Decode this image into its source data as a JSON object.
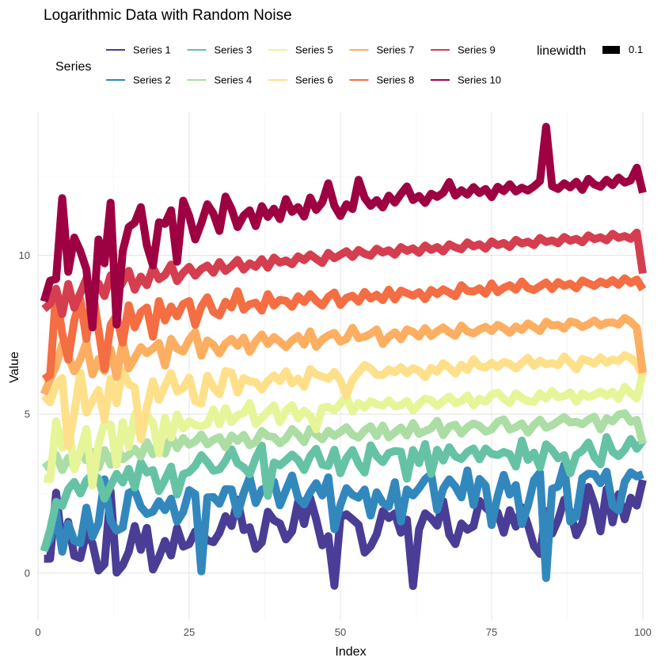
{
  "chart_data": {
    "type": "line",
    "title": "Logarithmic Data with Random Noise",
    "xlabel": "Index",
    "ylabel": "Value",
    "xlim": [
      0,
      100
    ],
    "ylim": [
      -1.5,
      14.5
    ],
    "xticks": [
      0,
      25,
      50,
      75,
      100
    ],
    "yticks": [
      0,
      5,
      10
    ],
    "grid": true,
    "legend": {
      "title": "Series",
      "placement": "top",
      "size_title": "linewidth",
      "size_label": "0.1"
    },
    "series": [
      {
        "name": "Series 1",
        "color": "#4a3d96",
        "values": [
          0.45,
          0.45,
          2.53,
          0.83,
          1.61,
          0.54,
          0.47,
          1.27,
          0.94,
          0.08,
          0.28,
          2.58,
          0.01,
          0.24,
          0.67,
          1.48,
          0.73,
          1.42,
          0.11,
          0.5,
          1.01,
          0.55,
          1.42,
          0.83,
          0.91,
          1.31,
          1.25,
          1.03,
          0.97,
          1.27,
          1.79,
          1.48,
          2.31,
          1.35,
          1.44,
          0.76,
          0.96,
          1.93,
          1.66,
          1.56,
          1.06,
          1.31,
          2.24,
          1.54,
          2.37,
          1.69,
          0.87,
          1.16,
          -0.4,
          1.75,
          1.85,
          1.69,
          1.52,
          0.64,
          0.84,
          1.22,
          1.95,
          1.73,
          1.88,
          1.27,
          1.68,
          -0.41,
          1.37,
          1.88,
          1.72,
          1.49,
          2.26,
          1.21,
          0.91,
          1.56,
          1.36,
          1.47,
          2.27,
          2.06,
          1.88,
          1.91,
          1.27,
          1.98,
          1.46,
          2.07,
          1.52,
          0.85,
          0.6,
          1.95,
          1.24,
          1.67,
          2.31,
          1.93,
          1.19,
          1.58,
          2.71,
          2.16,
          1.31,
          2.64,
          1.59,
          2.48,
          1.69,
          2.37,
          2.12,
          2.93
        ]
      },
      {
        "name": "Series 2",
        "color": "#3288bd",
        "values": [
          0.74,
          1.07,
          1.93,
          0.67,
          1.55,
          1.02,
          0.94,
          2.06,
          1.14,
          1.56,
          2.95,
          1.65,
          1.33,
          1.43,
          2.52,
          2.61,
          2.09,
          1.86,
          1.93,
          2.26,
          1.98,
          2.34,
          1.62,
          1.92,
          2.61,
          2.48,
          0.05,
          2.38,
          2.39,
          2.18,
          2.64,
          2.63,
          1.85,
          2.52,
          3.01,
          2.2,
          2.63,
          2.71,
          2.88,
          2.13,
          2.61,
          3.07,
          2.36,
          2.16,
          2.54,
          2.83,
          2.44,
          3.01,
          1.38,
          2.14,
          2.67,
          2.46,
          2.37,
          2.63,
          1.81,
          2.54,
          2.21,
          2.09,
          2.86,
          1.62,
          2.63,
          2.44,
          2.67,
          2.95,
          3.12,
          1.99,
          2.66,
          2.95,
          2.72,
          2.38,
          3.23,
          2.14,
          2.96,
          2.75,
          1.51,
          2.42,
          3.09,
          2.47,
          2.77,
          1.54,
          2.11,
          2.92,
          3.16,
          -0.16,
          2.65,
          2.72,
          3.41,
          1.62,
          1.78,
          2.99,
          3.13,
          3.11,
          2.83,
          3.19,
          2.12,
          1.97,
          2.87,
          3.17,
          3.04,
          3.11
        ]
      },
      {
        "name": "Series 3",
        "color": "#66c2a5",
        "values": [
          0.69,
          1.36,
          2.24,
          2.11,
          2.64,
          2.87,
          2.5,
          2.91,
          3.12,
          2.97,
          2.34,
          2.75,
          3.12,
          2.85,
          3.28,
          2.69,
          3.48,
          3.16,
          3.24,
          2.58,
          2.94,
          3.35,
          2.47,
          3.11,
          3.18,
          3.38,
          3.71,
          3.49,
          3.22,
          3.26,
          3.53,
          3.89,
          3.45,
          3.33,
          3.11,
          3.62,
          4.01,
          2.43,
          3.48,
          3.39,
          3.55,
          3.73,
          3.56,
          3.24,
          3.68,
          3.91,
          3.41,
          3.37,
          3.88,
          3.14,
          3.62,
          3.87,
          3.44,
          3.16,
          4.02,
          3.68,
          3.49,
          3.78,
          3.84,
          3.82,
          2.97,
          3.87,
          3.46,
          4.06,
          3.12,
          3.88,
          3.54,
          3.96,
          3.67,
          3.59,
          3.81,
          3.92,
          3.58,
          3.92,
          3.75,
          3.71,
          3.81,
          3.74,
          3.35,
          4.17,
          3.56,
          3.79,
          3.33,
          4.05,
          3.88,
          3.61,
          3.71,
          3.14,
          3.72,
          3.85,
          4.11,
          3.65,
          3.42,
          4.28,
          3.82,
          3.68,
          3.88,
          4.22,
          3.91,
          4.16
        ]
      },
      {
        "name": "Series 4",
        "color": "#abdda4",
        "values": [
          3.31,
          3.45,
          3.72,
          3.24,
          3.63,
          3.34,
          3.78,
          3.55,
          3.81,
          3.32,
          3.87,
          3.41,
          4.02,
          3.58,
          3.72,
          3.91,
          3.67,
          4.12,
          3.74,
          4.08,
          3.76,
          4.32,
          3.93,
          4.25,
          4.04,
          4.14,
          4.36,
          4.05,
          4.19,
          4.28,
          3.96,
          4.33,
          4.16,
          4.35,
          4.02,
          4.12,
          4.47,
          4.31,
          4.28,
          4.08,
          4.23,
          4.53,
          4.36,
          4.12,
          4.54,
          4.36,
          4.21,
          4.48,
          4.32,
          4.44,
          4.59,
          4.35,
          4.26,
          4.49,
          4.62,
          4.31,
          4.64,
          4.27,
          4.43,
          4.58,
          4.33,
          4.72,
          4.38,
          4.47,
          4.55,
          4.79,
          4.34,
          4.61,
          4.67,
          4.39,
          4.59,
          4.71,
          4.63,
          4.45,
          4.52,
          4.76,
          4.84,
          4.51,
          4.59,
          4.71,
          4.42,
          4.66,
          4.83,
          4.57,
          4.65,
          4.78,
          4.91,
          4.74,
          4.76,
          4.68,
          4.83,
          4.92,
          4.52,
          4.87,
          4.77,
          4.99,
          5.03,
          4.76,
          4.82,
          4.07
        ]
      },
      {
        "name": "Series 5",
        "color": "#e6f598",
        "values": [
          2.98,
          2.95,
          4.78,
          3.94,
          4.74,
          3.26,
          3.84,
          4.53,
          2.75,
          4.05,
          4.71,
          4.67,
          3.41,
          4.75,
          3.97,
          4.99,
          4.26,
          4.98,
          4.71,
          3.76,
          4.89,
          4.26,
          4.99,
          4.55,
          4.77,
          4.66,
          4.62,
          4.69,
          5.15,
          4.68,
          5.19,
          4.75,
          4.97,
          5.03,
          5.35,
          4.69,
          4.88,
          5.09,
          5.28,
          4.75,
          5.11,
          5.29,
          4.87,
          5.11,
          4.96,
          4.52,
          5.21,
          5.23,
          5.12,
          5.33,
          5.55,
          5.08,
          5.35,
          5.21,
          5.41,
          5.31,
          5.27,
          5.44,
          5.25,
          5.28,
          5.42,
          5.11,
          5.32,
          5.49,
          5.44,
          5.26,
          5.41,
          5.56,
          5.35,
          5.41,
          5.59,
          5.28,
          5.49,
          5.39,
          5.62,
          5.68,
          5.49,
          5.35,
          5.66,
          5.51,
          5.41,
          5.39,
          5.66,
          5.49,
          5.73,
          5.53,
          5.57,
          5.69,
          5.39,
          5.66,
          5.54,
          5.61,
          5.71,
          5.58,
          5.71,
          5.48,
          5.86,
          5.66,
          5.49,
          6.29
        ]
      },
      {
        "name": "Series 6",
        "color": "#fee08b",
        "values": [
          5.58,
          5.37,
          5.93,
          6.14,
          3.99,
          5.02,
          6.31,
          5.05,
          5.42,
          5.76,
          4.83,
          6.11,
          5.34,
          6.36,
          5.95,
          5.84,
          4.21,
          5.22,
          6.04,
          5.45,
          5.89,
          6.29,
          5.71,
          5.82,
          6.15,
          5.41,
          5.33,
          6.21,
          5.84,
          5.63,
          6.36,
          6.31,
          5.68,
          6.14,
          6.03,
          6.01,
          5.78,
          6.05,
          6.22,
          6.04,
          6.35,
          5.97,
          6.12,
          5.86,
          6.42,
          6.25,
          6.18,
          6.11,
          6.33,
          6.06,
          5.59,
          6.08,
          6.32,
          6.55,
          6.44,
          6.24,
          6.23,
          6.41,
          6.32,
          6.48,
          6.29,
          6.45,
          6.37,
          6.16,
          6.46,
          6.33,
          6.61,
          6.46,
          6.28,
          6.56,
          6.39,
          6.73,
          6.51,
          6.47,
          6.62,
          6.48,
          6.65,
          6.58,
          6.44,
          6.61,
          6.78,
          6.52,
          6.69,
          6.57,
          6.61,
          6.54,
          6.82,
          6.63,
          6.41,
          6.74,
          6.68,
          6.59,
          6.79,
          6.62,
          6.72,
          6.68,
          6.86,
          6.77,
          6.59,
          6.19
        ]
      },
      {
        "name": "Series 7",
        "color": "#fdae61",
        "values": [
          5.63,
          6.11,
          6.52,
          7.21,
          6.83,
          6.35,
          6.73,
          7.26,
          6.25,
          6.74,
          6.36,
          7.05,
          6.17,
          7.28,
          6.44,
          6.77,
          7.11,
          6.92,
          7.06,
          7.24,
          6.53,
          7.37,
          7.06,
          6.97,
          7.35,
          7.59,
          6.84,
          7.32,
          7.18,
          6.91,
          7.22,
          7.37,
          7.15,
          7.41,
          6.96,
          7.29,
          7.51,
          7.21,
          7.43,
          7.28,
          7.11,
          7.32,
          7.46,
          7.19,
          7.61,
          7.12,
          7.35,
          7.48,
          7.56,
          7.28,
          7.37,
          7.72,
          7.39,
          7.44,
          7.53,
          7.67,
          7.21,
          7.44,
          7.58,
          7.36,
          7.67,
          7.59,
          7.44,
          7.71,
          7.46,
          7.61,
          7.73,
          7.58,
          7.47,
          7.79,
          7.61,
          7.54,
          7.67,
          7.75,
          7.62,
          7.81,
          7.71,
          7.56,
          7.76,
          7.65,
          7.86,
          7.74,
          7.62,
          7.91,
          7.79,
          7.81,
          7.69,
          7.92,
          7.87,
          7.74,
          7.83,
          7.95,
          7.79,
          7.88,
          7.89,
          7.82,
          8.03,
          7.91,
          7.72,
          6.3
        ]
      },
      {
        "name": "Series 8",
        "color": "#f46d43",
        "values": [
          6.1,
          6.23,
          8.84,
          7.54,
          6.72,
          7.95,
          8.62,
          7.37,
          8.91,
          7.66,
          6.42,
          7.81,
          8.11,
          7.25,
          8.43,
          7.73,
          8.21,
          8.36,
          7.44,
          8.56,
          7.95,
          8.39,
          8.08,
          8.47,
          8.56,
          7.81,
          8.39,
          8.68,
          8.22,
          8.11,
          8.54,
          8.36,
          8.87,
          8.29,
          8.46,
          8.51,
          8.26,
          8.78,
          8.42,
          8.6,
          8.57,
          8.38,
          8.71,
          8.53,
          8.78,
          8.57,
          8.42,
          8.69,
          8.83,
          8.44,
          8.66,
          8.73,
          8.54,
          8.85,
          8.64,
          8.76,
          8.59,
          8.92,
          8.61,
          8.89,
          8.81,
          8.73,
          8.84,
          8.62,
          8.91,
          8.78,
          8.93,
          8.83,
          8.71,
          9.06,
          8.88,
          8.86,
          8.96,
          8.79,
          9.12,
          8.84,
          8.98,
          9.06,
          8.92,
          9.18,
          8.97,
          8.91,
          9.03,
          9.15,
          8.94,
          9.16,
          9.04,
          9.11,
          8.96,
          9.21,
          9.12,
          9.04,
          9.18,
          9.09,
          9.22,
          9.07,
          9.28,
          9.13,
          9.24,
          8.93
        ]
      },
      {
        "name": "Series 9",
        "color": "#d53e4f",
        "values": [
          8.31,
          8.48,
          8.95,
          8.15,
          9.1,
          8.35,
          8.81,
          9.27,
          8.63,
          9.12,
          8.72,
          9.37,
          8.85,
          9.16,
          9.51,
          8.92,
          9.33,
          9.06,
          9.61,
          9.25,
          9.38,
          9.71,
          9.19,
          9.45,
          9.64,
          9.36,
          9.57,
          9.68,
          9.45,
          9.79,
          9.51,
          9.66,
          9.86,
          9.55,
          9.75,
          9.64,
          9.88,
          9.61,
          9.93,
          9.77,
          9.84,
          9.72,
          9.97,
          9.85,
          10.03,
          9.89,
          9.76,
          10.08,
          9.91,
          10.02,
          10.13,
          9.95,
          10.17,
          10.05,
          9.99,
          10.21,
          10.09,
          10.16,
          10.02,
          10.26,
          10.14,
          10.22,
          10.08,
          10.31,
          10.17,
          10.26,
          10.12,
          10.35,
          10.25,
          10.19,
          10.41,
          10.28,
          10.35,
          10.21,
          10.44,
          10.32,
          10.39,
          10.26,
          10.49,
          10.37,
          10.43,
          10.32,
          10.55,
          10.42,
          10.47,
          10.38,
          10.58,
          10.46,
          10.52,
          10.41,
          10.63,
          10.51,
          10.57,
          10.47,
          10.68,
          10.55,
          10.61,
          10.52,
          10.72,
          9.43
        ]
      },
      {
        "name": "Series 10",
        "color": "#9e0142",
        "values": [
          8.55,
          9.2,
          9.26,
          11.8,
          9.48,
          10.56,
          10.13,
          9.56,
          7.73,
          10.5,
          9.75,
          11.66,
          7.82,
          10.13,
          10.89,
          11.03,
          11.52,
          10.31,
          9.68,
          11.04,
          10.99,
          11.42,
          9.8,
          11.72,
          11.24,
          10.5,
          11.01,
          11.61,
          11.31,
          10.77,
          11.85,
          11.46,
          10.89,
          11.25,
          11.42,
          10.92,
          11.55,
          11.21,
          11.47,
          11.14,
          11.77,
          11.37,
          11.52,
          11.22,
          11.82,
          11.43,
          11.67,
          12.27,
          11.56,
          11.24,
          11.61,
          11.46,
          12.38,
          11.81,
          11.56,
          11.74,
          11.51,
          11.88,
          11.66,
          11.93,
          12.17,
          11.74,
          11.87,
          11.65,
          11.94,
          11.84,
          11.97,
          12.31,
          11.88,
          12.05,
          11.91,
          12.15,
          11.96,
          12.09,
          11.83,
          12.16,
          12.02,
          12.24,
          12.01,
          12.13,
          12.04,
          12.17,
          12.34,
          14.05,
          12.18,
          12.09,
          12.27,
          12.14,
          12.32,
          12.06,
          12.41,
          12.23,
          12.16,
          12.38,
          12.21,
          12.45,
          12.29,
          12.36,
          12.76,
          11.97
        ]
      }
    ]
  }
}
